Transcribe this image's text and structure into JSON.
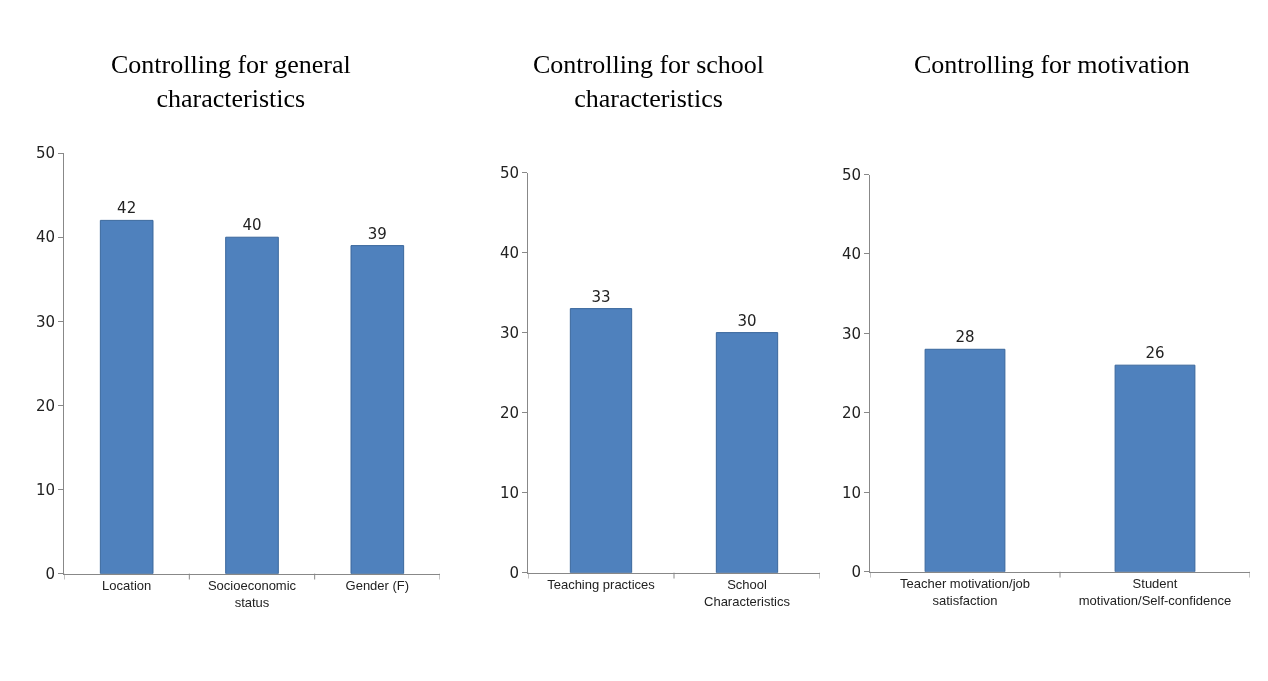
{
  "chart_data": [
    {
      "type": "bar",
      "title": "Controlling for general characteristics",
      "categories": [
        "Location",
        "Socioeconomic status",
        "Gender (F)"
      ],
      "values": [
        42,
        40,
        39
      ],
      "color": "#4f81bd",
      "ylim": [
        0,
        50
      ],
      "yticks": [
        0,
        10,
        20,
        30,
        40,
        50
      ],
      "data_labels": true
    },
    {
      "type": "bar",
      "title": "Controlling for school characteristics",
      "categories": [
        "Teaching practices",
        "School Characteristics"
      ],
      "values": [
        33,
        30
      ],
      "color": "#4f81bd",
      "ylim": [
        0,
        50
      ],
      "yticks": [
        0,
        10,
        20,
        30,
        40,
        50
      ],
      "data_labels": true
    },
    {
      "type": "bar",
      "title": "Controlling for motivation",
      "categories": [
        "Teacher motivation/job satisfaction",
        "Student motivation/Self-confidence"
      ],
      "values": [
        28,
        26
      ],
      "color": "#4f81bd",
      "ylim": [
        0,
        50
      ],
      "yticks": [
        0,
        10,
        20,
        30,
        40,
        50
      ],
      "data_labels": true
    }
  ]
}
